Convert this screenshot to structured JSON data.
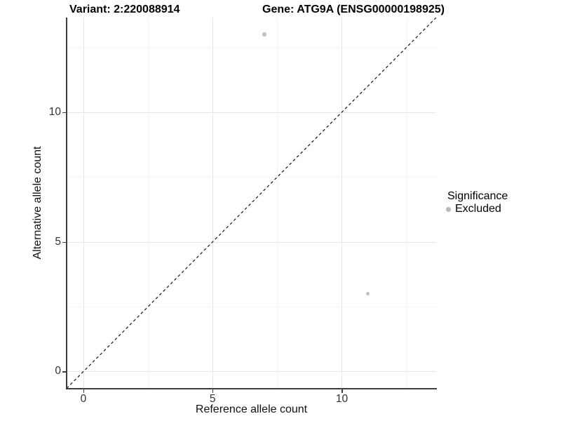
{
  "titles": {
    "variant": "Variant: 2:220088914",
    "gene": "Gene: ATG9A (ENSG00000198925)"
  },
  "legend": {
    "title": "Significance",
    "items": [
      {
        "label": "Excluded",
        "color": "#b7b7b7"
      }
    ]
  },
  "chart_data": {
    "type": "scatter",
    "title": "Variant: 2:220088914   Gene: ATG9A (ENSG00000198925)",
    "xlabel": "Reference allele count",
    "ylabel": "Alternative allele count",
    "xlim": [
      -0.65,
      13.65
    ],
    "ylim": [
      -0.65,
      13.65
    ],
    "x_ticks": [
      0,
      5,
      10
    ],
    "y_ticks": [
      0,
      5,
      10
    ],
    "x_minor_ticks": [
      2.5,
      7.5,
      12.5
    ],
    "y_minor_ticks": [
      2.5,
      7.5,
      12.5
    ],
    "grid": true,
    "legend_position": "right",
    "series": [
      {
        "name": "Excluded",
        "color": "#c2c2c2",
        "points": [
          {
            "x": 7,
            "y": 13
          },
          {
            "x": 11,
            "y": 3
          }
        ]
      }
    ],
    "reference_line": {
      "style": "dashed",
      "slope": 1,
      "intercept": 0,
      "color": "#141414"
    }
  }
}
